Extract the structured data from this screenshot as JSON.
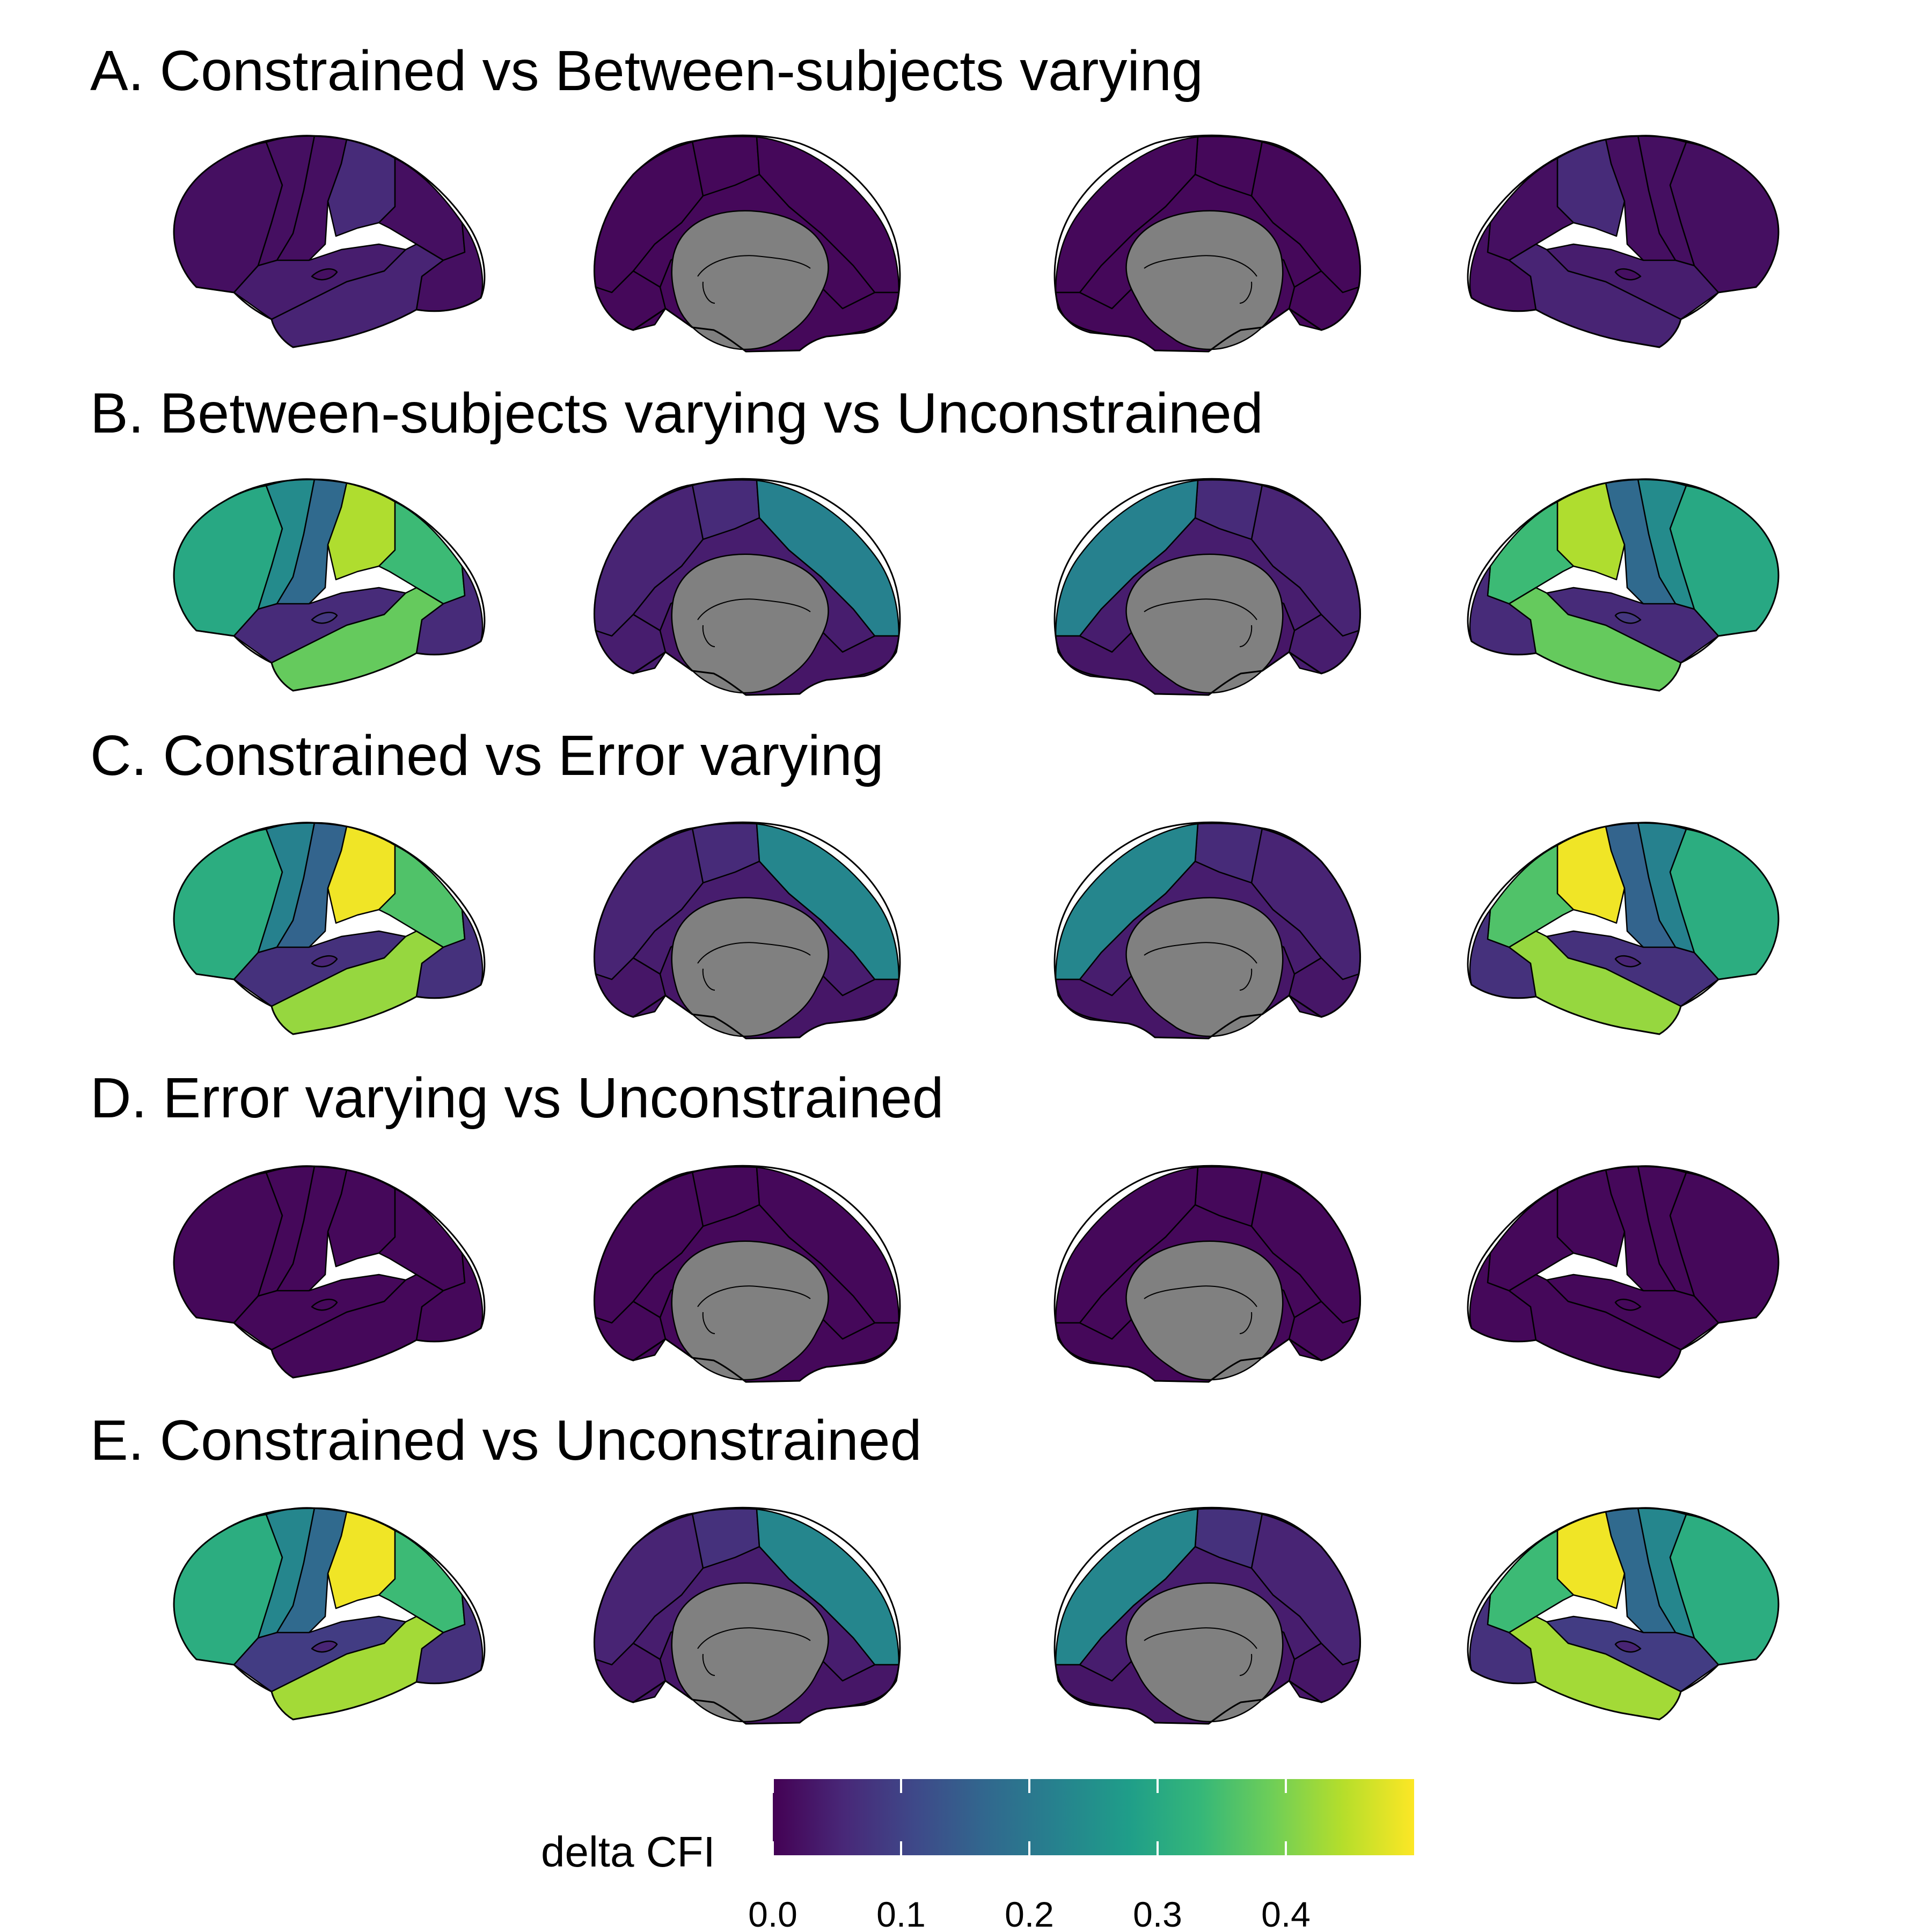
{
  "figure": {
    "panels": [
      {
        "title": "A. Constrained vs Between-subjects varying",
        "values": {
          "frontal": 0.02,
          "precentral": 0.02,
          "postcentral": 0.02,
          "supramarginal": 0.06,
          "parietal": 0.02,
          "occipital": 0.02,
          "superior_temporal": 0.04,
          "middle_temporal": 0.05,
          "insula": 0.02,
          "medial_frontal": 0.01,
          "paracentral": 0.01,
          "precuneus": 0.01,
          "cingulate": 0.01,
          "medial_occipital": 0.01,
          "medial_temporal": 0.01
        }
      },
      {
        "title": "B. Between-subjects varying vs Unconstrained",
        "values": {
          "frontal": 0.3,
          "precentral": 0.24,
          "postcentral": 0.17,
          "supramarginal": 0.44,
          "parietal": 0.34,
          "occipital": 0.06,
          "superior_temporal": 0.06,
          "middle_temporal": 0.38,
          "insula": 0.08,
          "medial_frontal": 0.05,
          "paracentral": 0.06,
          "precuneus": 0.22,
          "cingulate": 0.04,
          "medial_occipital": 0.04,
          "medial_temporal": 0.03
        }
      },
      {
        "title": "C. Constrained vs Error varying",
        "values": {
          "frontal": 0.31,
          "precentral": 0.22,
          "postcentral": 0.16,
          "supramarginal": 0.49,
          "parietal": 0.36,
          "occipital": 0.07,
          "superior_temporal": 0.07,
          "middle_temporal": 0.42,
          "insula": 0.05,
          "medial_frontal": 0.05,
          "paracentral": 0.06,
          "precuneus": 0.23,
          "cingulate": 0.04,
          "medial_occipital": 0.03,
          "medial_temporal": 0.03
        }
      },
      {
        "title": "D. Error varying vs Unconstrained",
        "values": {
          "frontal": 0.01,
          "precentral": 0.01,
          "postcentral": 0.01,
          "supramarginal": 0.01,
          "parietal": 0.01,
          "occipital": 0.01,
          "superior_temporal": 0.01,
          "middle_temporal": 0.01,
          "insula": 0.01,
          "medial_frontal": 0.01,
          "paracentral": 0.01,
          "precuneus": 0.01,
          "cingulate": 0.01,
          "medial_occipital": 0.01,
          "medial_temporal": 0.01
        }
      },
      {
        "title": "E. Constrained vs Unconstrained",
        "values": {
          "frontal": 0.31,
          "precentral": 0.23,
          "postcentral": 0.17,
          "supramarginal": 0.49,
          "parietal": 0.34,
          "occipital": 0.07,
          "superior_temporal": 0.09,
          "middle_temporal": 0.43,
          "insula": 0.05,
          "medial_frontal": 0.05,
          "paracentral": 0.07,
          "precuneus": 0.23,
          "cingulate": 0.04,
          "medial_occipital": 0.03,
          "medial_temporal": 0.03
        }
      }
    ],
    "views": [
      "lateral-left",
      "medial-left",
      "medial-right",
      "lateral-right"
    ],
    "colorbar": {
      "title": "delta CFI",
      "range": [
        0.0,
        0.5
      ],
      "ticks": [
        0.0,
        0.1,
        0.2,
        0.3,
        0.4
      ],
      "tick_labels": [
        "0.0",
        "0.1",
        "0.2",
        "0.3",
        "0.4"
      ],
      "palette": [
        "#440154",
        "#482878",
        "#3e4989",
        "#31688e",
        "#26828e",
        "#1f9e89",
        "#35b779",
        "#6ece58",
        "#b5de2b",
        "#fde725"
      ]
    },
    "colors": {
      "non_cortex": "#808080",
      "outline": "#000000",
      "background": "#ffffff"
    }
  }
}
